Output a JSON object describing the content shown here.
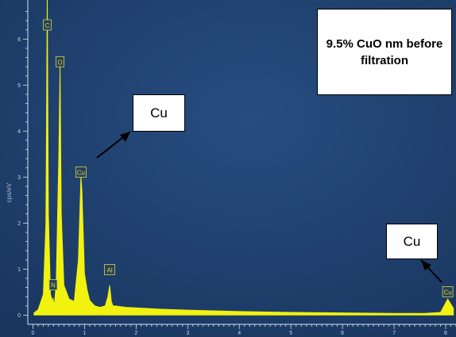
{
  "chart_data": {
    "type": "area",
    "title": "",
    "ylabel": "cps/eV",
    "xlabel": "",
    "xlim": [
      -0.1,
      8.2
    ],
    "ylim": [
      -0.2,
      6.85
    ],
    "xticks": [
      0,
      1,
      2,
      3,
      4,
      5,
      6,
      7,
      8
    ],
    "yticks": [
      0,
      1,
      2,
      3,
      4,
      5,
      6
    ],
    "series": [
      {
        "x": [
          0.02,
          0.1,
          0.2,
          0.25,
          0.277,
          0.3,
          0.34,
          0.38,
          0.392,
          0.4,
          0.42,
          0.45,
          0.5,
          0.525,
          0.55,
          0.6,
          0.7,
          0.8,
          0.88,
          0.93,
          0.95,
          1.0,
          1.05,
          1.1,
          1.2,
          1.3,
          1.4,
          1.45,
          1.487,
          1.52,
          1.55,
          1.6,
          1.8,
          2.0,
          2.5,
          3.0,
          4.0,
          5.0,
          6.0,
          7.0,
          7.6,
          7.9,
          8.04,
          8.15
        ],
        "y": [
          0.05,
          0.12,
          0.45,
          2.0,
          7.2,
          2.2,
          0.45,
          0.3,
          0.38,
          0.25,
          0.3,
          0.7,
          3.5,
          5.5,
          2.2,
          0.65,
          0.35,
          0.3,
          1.2,
          3.05,
          2.7,
          0.9,
          0.55,
          0.32,
          0.2,
          0.17,
          0.2,
          0.4,
          0.65,
          0.3,
          0.2,
          0.2,
          0.17,
          0.16,
          0.13,
          0.11,
          0.08,
          0.06,
          0.05,
          0.04,
          0.04,
          0.06,
          0.35,
          0.15
        ]
      }
    ],
    "peak_labels": [
      {
        "label": "C",
        "x": 0.277,
        "y": 6.3
      },
      {
        "label": "O",
        "x": 0.525,
        "y": 5.5
      },
      {
        "label": "N",
        "x": 0.392,
        "y": 0.65
      },
      {
        "label": "Cu",
        "x": 0.93,
        "y": 3.1
      },
      {
        "label": "Al",
        "x": 1.487,
        "y": 0.98
      },
      {
        "label": "Cu",
        "x": 8.04,
        "y": 0.5
      }
    ],
    "annotations": {
      "title_box": "9.5% CuO nm before filtration",
      "cu_label_1": "Cu",
      "cu_label_2": "Cu"
    },
    "colors": {
      "background": "#1d3e6b",
      "spectrum": "#f2f20f",
      "axis": "#d8e2ee",
      "peak_label": "#c9d95a"
    }
  }
}
